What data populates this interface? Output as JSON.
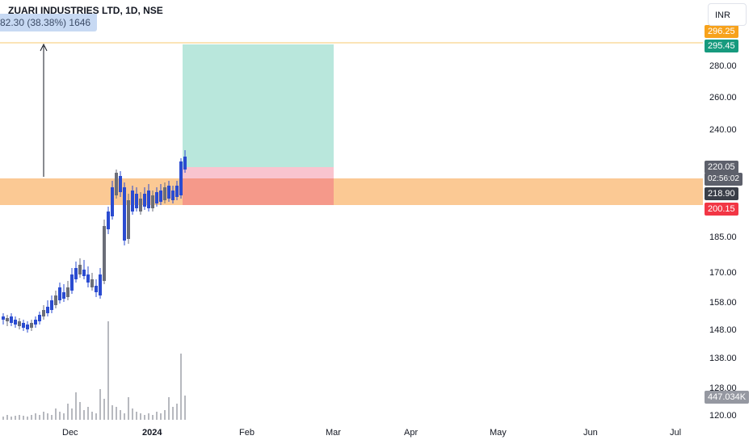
{
  "header": {
    "symbol_line": "ZUARI INDUSTRIES LTD, 1D, NSE",
    "measure_label": "82.30 (38.38%) 1646"
  },
  "currency": "INR",
  "price_axis": {
    "ticks": [
      "280.00",
      "260.00",
      "240.00",
      "185.00",
      "170.00",
      "158.00",
      "148.00",
      "138.00",
      "128.00",
      "120.00"
    ],
    "tags": {
      "top_target": "296.25",
      "target": "295.45",
      "last": "220.05",
      "countdown": "02:56:02",
      "entry": "218.90",
      "stop": "200.15",
      "volume": "447.034K"
    }
  },
  "time_axis": {
    "ticks": [
      "Dec",
      "2024",
      "Feb",
      "Mar",
      "Apr",
      "May",
      "Jun",
      "Jul"
    ]
  },
  "colors": {
    "up": "#2a4bd1",
    "down": "#6b6e78",
    "zone": "#fbc994",
    "profit": "#b9e7dc",
    "loss": "#f5998a",
    "target_tag": "#179a7e",
    "stop_tag": "#f23645",
    "top_tag": "#f7a21b",
    "last_tag": "#5d606b",
    "entry_tag": "#3a3e48",
    "volume_tag": "#9598a1",
    "line": "#f7c96e"
  },
  "chart_data": {
    "type": "candlestick",
    "title": "ZUARI INDUSTRIES LTD, 1D, NSE",
    "ylim": [
      120,
      300
    ],
    "levels": {
      "target": 295.45,
      "entry": 218.9,
      "stop": 200.15,
      "last": 220.05,
      "top_line": 296.25
    },
    "zone": [
      200.15,
      218.9
    ],
    "measure": {
      "change": 82.3,
      "percent": 38.38,
      "bars": 1646
    }
  }
}
